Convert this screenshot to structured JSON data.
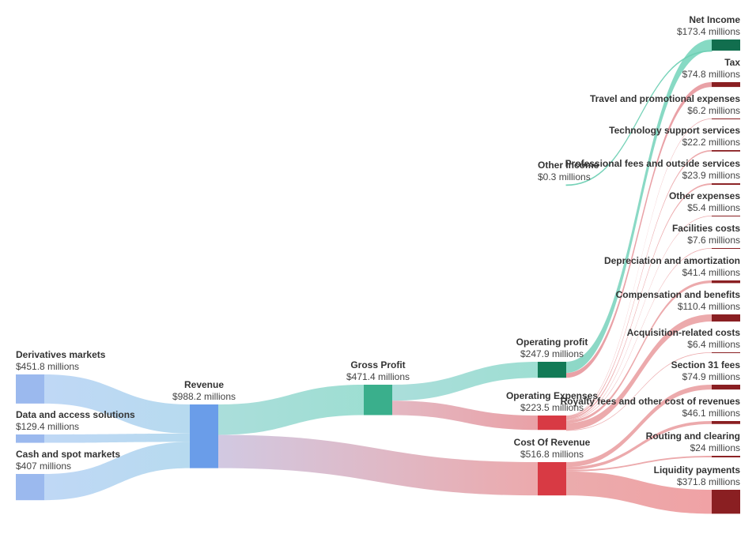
{
  "chart_data": {
    "type": "sankey",
    "unit": "millions",
    "nodes": [
      {
        "id": "derivatives",
        "name": "Derivatives markets",
        "value": "$451.8 millions",
        "amount": 451.8,
        "color": "#9bb9ee"
      },
      {
        "id": "data_access",
        "name": "Data and access solutions",
        "value": "$129.4 millions",
        "amount": 129.4,
        "color": "#9bb9ee"
      },
      {
        "id": "cash_spot",
        "name": "Cash and spot markets",
        "value": "$407 millions",
        "amount": 407,
        "color": "#9bb9ee"
      },
      {
        "id": "revenue",
        "name": "Revenue",
        "value": "$988.2 millions",
        "amount": 988.2,
        "color": "#6a9de9"
      },
      {
        "id": "gross_profit",
        "name": "Gross Profit",
        "value": "$471.4 millions",
        "amount": 471.4,
        "color": "#3aaf8c"
      },
      {
        "id": "cost_of_revenue",
        "name": "Cost Of Revenue",
        "value": "$516.8 millions",
        "amount": 516.8,
        "color": "#d83a44"
      },
      {
        "id": "operating_profit",
        "name": "Operating profit",
        "value": "$247.9 millions",
        "amount": 247.9,
        "color": "#127a56"
      },
      {
        "id": "operating_expenses",
        "name": "Operating Expenses",
        "value": "$223.5 millions",
        "amount": 223.5,
        "color": "#d83a44"
      },
      {
        "id": "other_income",
        "name": "Other Income",
        "value": "$0.3 millions",
        "amount": 0.3,
        "color": "#7fd8c0"
      },
      {
        "id": "net_income",
        "name": "Net Income",
        "value": "$173.4 millions",
        "amount": 173.4,
        "color": "#116e4e"
      },
      {
        "id": "tax",
        "name": "Tax",
        "value": "$74.8 millions",
        "amount": 74.8,
        "color": "#8a1f22"
      },
      {
        "id": "travel",
        "name": "Travel and promotional expenses",
        "value": "$6.2 millions",
        "amount": 6.2,
        "color": "#8a1f22"
      },
      {
        "id": "tech_support",
        "name": "Technology support services",
        "value": "$22.2 millions",
        "amount": 22.2,
        "color": "#8a1f22"
      },
      {
        "id": "professional_fees",
        "name": "Professional fees and outside services",
        "value": "$23.9 millions",
        "amount": 23.9,
        "color": "#8a1f22"
      },
      {
        "id": "other_expenses",
        "name": "Other expenses",
        "value": "$5.4 millions",
        "amount": 5.4,
        "color": "#8a1f22"
      },
      {
        "id": "facilities",
        "name": "Facilities costs",
        "value": "$7.6 millions",
        "amount": 7.6,
        "color": "#8a1f22"
      },
      {
        "id": "depreciation",
        "name": "Depreciation and amortization",
        "value": "$41.4 millions",
        "amount": 41.4,
        "color": "#8a1f22"
      },
      {
        "id": "compensation",
        "name": "Compensation and benefits",
        "value": "$110.4 millions",
        "amount": 110.4,
        "color": "#8a1f22"
      },
      {
        "id": "acquisition",
        "name": "Acquisition-related costs",
        "value": "$6.4 millions",
        "amount": 6.4,
        "color": "#8a1f22"
      },
      {
        "id": "section31",
        "name": "Section 31 fees",
        "value": "$74.9 millions",
        "amount": 74.9,
        "color": "#8a1f22"
      },
      {
        "id": "royalty",
        "name": "Royalty fees and other cost of revenues",
        "value": "$46.1 millions",
        "amount": 46.1,
        "color": "#8a1f22"
      },
      {
        "id": "routing",
        "name": "Routing and clearing",
        "value": "$24 millions",
        "amount": 24,
        "color": "#8a1f22"
      },
      {
        "id": "liquidity",
        "name": "Liquidity payments",
        "value": "$371.8 millions",
        "amount": 371.8,
        "color": "#8a1f22"
      }
    ],
    "links": [
      {
        "source": "derivatives",
        "target": "revenue",
        "value": 451.8
      },
      {
        "source": "data_access",
        "target": "revenue",
        "value": 129.4
      },
      {
        "source": "cash_spot",
        "target": "revenue",
        "value": 407
      },
      {
        "source": "revenue",
        "target": "gross_profit",
        "value": 471.4
      },
      {
        "source": "revenue",
        "target": "cost_of_revenue",
        "value": 516.8
      },
      {
        "source": "gross_profit",
        "target": "operating_profit",
        "value": 247.9
      },
      {
        "source": "gross_profit",
        "target": "operating_expenses",
        "value": 223.5
      },
      {
        "source": "operating_profit",
        "target": "net_income",
        "value": 173.1
      },
      {
        "source": "operating_profit",
        "target": "tax",
        "value": 74.8
      },
      {
        "source": "other_income",
        "target": "net_income",
        "value": 0.3
      },
      {
        "source": "operating_expenses",
        "target": "travel",
        "value": 6.2
      },
      {
        "source": "operating_expenses",
        "target": "tech_support",
        "value": 22.2
      },
      {
        "source": "operating_expenses",
        "target": "professional_fees",
        "value": 23.9
      },
      {
        "source": "operating_expenses",
        "target": "other_expenses",
        "value": 5.4
      },
      {
        "source": "operating_expenses",
        "target": "facilities",
        "value": 7.6
      },
      {
        "source": "operating_expenses",
        "target": "depreciation",
        "value": 41.4
      },
      {
        "source": "operating_expenses",
        "target": "compensation",
        "value": 110.4
      },
      {
        "source": "operating_expenses",
        "target": "acquisition",
        "value": 6.4
      },
      {
        "source": "cost_of_revenue",
        "target": "section31",
        "value": 74.9
      },
      {
        "source": "cost_of_revenue",
        "target": "royalty",
        "value": 46.1
      },
      {
        "source": "cost_of_revenue",
        "target": "routing",
        "value": 24
      },
      {
        "source": "cost_of_revenue",
        "target": "liquidity",
        "value": 371.8
      }
    ]
  }
}
